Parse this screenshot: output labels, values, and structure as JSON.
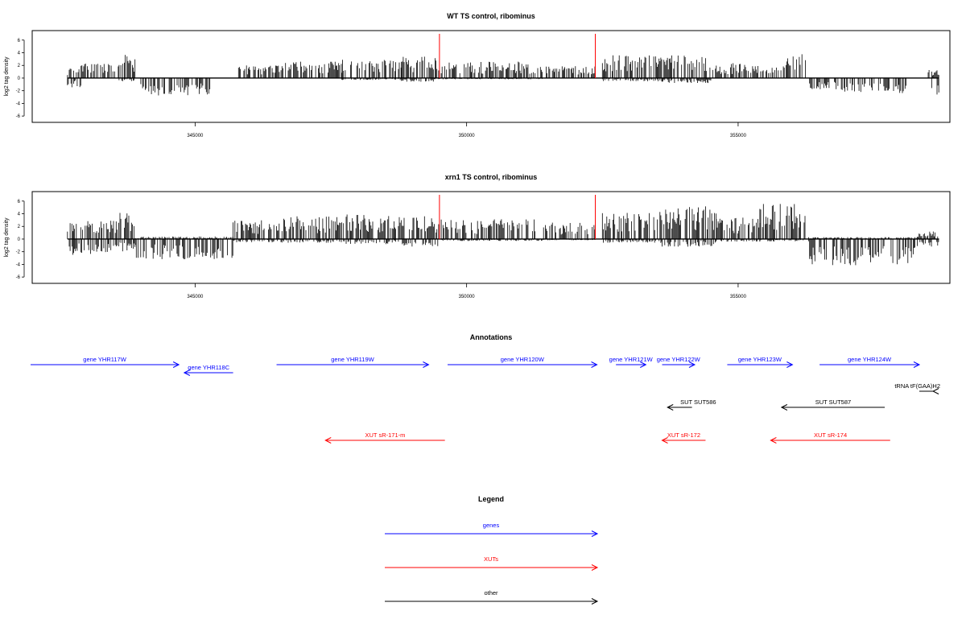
{
  "colors": {
    "genes": "#0000ff",
    "xuts": "#ff0000",
    "other": "#000000",
    "marker": "#ff0000",
    "signal": "#000000"
  },
  "chart_data": [
    {
      "type": "bar",
      "title": "WT TS control, ribominus",
      "ylabel": "log2 tag density",
      "xlim": [
        342000,
        358900
      ],
      "ylim": [
        -7,
        7.5
      ],
      "yticks": [
        -6,
        -4,
        -2,
        0,
        2,
        4,
        6
      ],
      "xticks": [
        345000,
        350000,
        355000
      ],
      "xtick_labels": [
        "345000",
        "350000",
        "355000"
      ],
      "markers": [
        349500,
        352370
      ],
      "clusters": [
        {
          "from": 342650,
          "to": 342900,
          "pos": 1.8,
          "neg": -1.5
        },
        {
          "from": 342900,
          "to": 343600,
          "pos": 2.4,
          "neg": 0
        },
        {
          "from": 343600,
          "to": 343900,
          "pos": 3.8,
          "neg": -0.5
        },
        {
          "from": 344000,
          "to": 345300,
          "pos": 0,
          "neg": -2.8
        },
        {
          "from": 345800,
          "to": 346600,
          "pos": 2.0,
          "neg": 0
        },
        {
          "from": 346600,
          "to": 347700,
          "pos": 2.6,
          "neg": 0
        },
        {
          "from": 347700,
          "to": 348800,
          "pos": 3.0,
          "neg": -0.3
        },
        {
          "from": 348800,
          "to": 349500,
          "pos": 3.4,
          "neg": -0.6
        },
        {
          "from": 349500,
          "to": 351400,
          "pos": 2.6,
          "neg": -0.2
        },
        {
          "from": 351400,
          "to": 352370,
          "pos": 2.0,
          "neg": 0
        },
        {
          "from": 352500,
          "to": 353600,
          "pos": 3.6,
          "neg": -0.5
        },
        {
          "from": 353600,
          "to": 354500,
          "pos": 3.6,
          "neg": -0.8
        },
        {
          "from": 354500,
          "to": 355800,
          "pos": 2.4,
          "neg": 0
        },
        {
          "from": 355800,
          "to": 356300,
          "pos": 4.0,
          "neg": 0
        },
        {
          "from": 356300,
          "to": 356900,
          "pos": 0,
          "neg": -1.8
        },
        {
          "from": 356900,
          "to": 358100,
          "pos": 0,
          "neg": -2.4
        },
        {
          "from": 358500,
          "to": 358700,
          "pos": 1.5,
          "neg": -2.8
        }
      ]
    },
    {
      "type": "bar",
      "title": "xrn1 TS control, ribominus",
      "ylabel": "log2 tag density",
      "xlim": [
        342000,
        358900
      ],
      "ylim": [
        -7,
        7.5
      ],
      "yticks": [
        -6,
        -4,
        -2,
        0,
        2,
        4,
        6
      ],
      "xticks": [
        345000,
        350000,
        355000
      ],
      "xtick_labels": [
        "345000",
        "350000",
        "355000"
      ],
      "markers": [
        349500,
        352370
      ],
      "clusters": [
        {
          "from": 342650,
          "to": 343600,
          "pos": 3.0,
          "neg": -2.5
        },
        {
          "from": 343600,
          "to": 343900,
          "pos": 4.2,
          "neg": -2.0
        },
        {
          "from": 343900,
          "to": 345700,
          "pos": 0.4,
          "neg": -3.2
        },
        {
          "from": 345700,
          "to": 346600,
          "pos": 3.0,
          "neg": -0.5
        },
        {
          "from": 346600,
          "to": 347700,
          "pos": 3.6,
          "neg": -0.6
        },
        {
          "from": 347700,
          "to": 348800,
          "pos": 4.0,
          "neg": -0.8
        },
        {
          "from": 348800,
          "to": 349500,
          "pos": 3.8,
          "neg": -1.2
        },
        {
          "from": 349500,
          "to": 351400,
          "pos": 3.2,
          "neg": -0.3
        },
        {
          "from": 351400,
          "to": 352370,
          "pos": 2.6,
          "neg": -0.2
        },
        {
          "from": 352500,
          "to": 353600,
          "pos": 4.4,
          "neg": -0.6
        },
        {
          "from": 353600,
          "to": 354600,
          "pos": 5.2,
          "neg": -1.2
        },
        {
          "from": 354600,
          "to": 355400,
          "pos": 3.4,
          "neg": -0.5
        },
        {
          "from": 355400,
          "to": 356300,
          "pos": 5.6,
          "neg": -0.4
        },
        {
          "from": 356300,
          "to": 358300,
          "pos": 0.3,
          "neg": -4.2
        },
        {
          "from": 358300,
          "to": 358700,
          "pos": 1.2,
          "neg": -1.2
        }
      ]
    }
  ],
  "annotations": {
    "title": "Annotations",
    "features": [
      {
        "label": "gene YHR117W",
        "type": "gene",
        "strand": "+",
        "start": 341500,
        "end": 344700,
        "row": 0
      },
      {
        "label": "gene YHR118C",
        "type": "gene",
        "strand": "-",
        "start": 344800,
        "end": 345700,
        "row": 1
      },
      {
        "label": "gene YHR119W",
        "type": "gene",
        "strand": "+",
        "start": 346500,
        "end": 349300,
        "row": 0
      },
      {
        "label": "gene YHR120W",
        "type": "gene",
        "strand": "+",
        "start": 349650,
        "end": 352400,
        "row": 0
      },
      {
        "label": "gene YHR121W",
        "type": "gene",
        "strand": "+",
        "start": 352750,
        "end": 353300,
        "row": 0
      },
      {
        "label": "gene YHR122W",
        "type": "gene",
        "strand": "+",
        "start": 353600,
        "end": 354200,
        "row": 0
      },
      {
        "label": "gene YHR123W",
        "type": "gene",
        "strand": "+",
        "start": 354800,
        "end": 356000,
        "row": 0
      },
      {
        "label": "gene YHR124W",
        "type": "gene",
        "strand": "+",
        "start": 356500,
        "end": 358600,
        "row": 0
      },
      {
        "label": "tRNA tF(GAA)H2",
        "type": "other",
        "strand": "-",
        "start": 358590,
        "end": 358700,
        "row": 2
      },
      {
        "label": "SUT SUT586",
        "type": "other",
        "strand": "-",
        "start": 353700,
        "end": 354150,
        "row": 3
      },
      {
        "label": "SUT SUT587",
        "type": "other",
        "strand": "-",
        "start": 355800,
        "end": 357700,
        "row": 3
      },
      {
        "label": "XUT sR-171-m",
        "type": "xut",
        "strand": "-",
        "start": 347400,
        "end": 349600,
        "row": 4
      },
      {
        "label": "XUT sR-172",
        "type": "xut",
        "strand": "-",
        "start": 353600,
        "end": 354400,
        "row": 4
      },
      {
        "label": "XUT sR-174",
        "type": "xut",
        "strand": "-",
        "start": 355600,
        "end": 357800,
        "row": 4
      }
    ]
  },
  "legend": {
    "title": "Legend",
    "items": [
      {
        "label": "genes",
        "color": "#0000ff"
      },
      {
        "label": "XUTs",
        "color": "#ff0000"
      },
      {
        "label": "other",
        "color": "#000000"
      }
    ]
  }
}
